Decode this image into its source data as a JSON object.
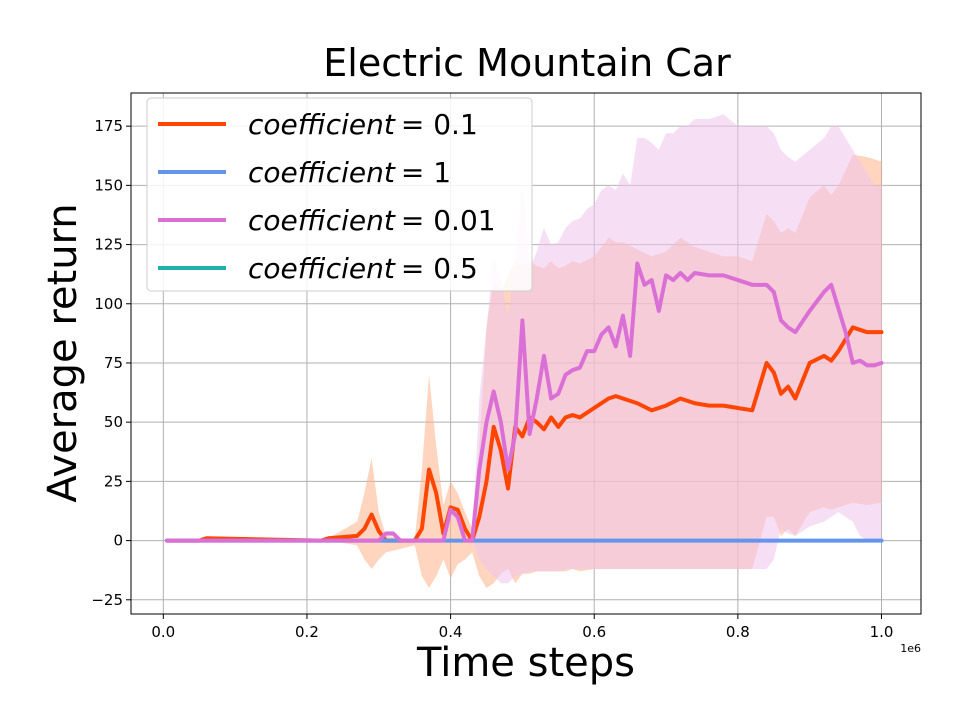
{
  "chart_data": {
    "type": "line",
    "title": "Electric Mountain Car",
    "xlabel": "Time steps",
    "ylabel": "Average return",
    "x_offset_label": "1e6",
    "xlim": [
      -0.045,
      1.055
    ],
    "ylim": [
      -31,
      189
    ],
    "x_ticks": [
      0.0,
      0.2,
      0.4,
      0.6,
      0.8,
      1.0
    ],
    "x_tick_labels": [
      "0.0",
      "0.2",
      "0.4",
      "0.6",
      "0.8",
      "1.0"
    ],
    "y_ticks": [
      -25,
      0,
      25,
      50,
      75,
      100,
      125,
      150,
      175
    ],
    "y_tick_labels": [
      "−25",
      "0",
      "25",
      "50",
      "75",
      "100",
      "125",
      "150",
      "175"
    ],
    "grid": true,
    "legend_position": "top-left",
    "series": [
      {
        "name": "coefficient = 0.1",
        "legend_italic": "coefficient",
        "legend_value": "= 0.1",
        "color": "#ff4500",
        "fill_color": "#ffb38c",
        "x": [
          0.005,
          0.05,
          0.06,
          0.22,
          0.23,
          0.27,
          0.28,
          0.29,
          0.3,
          0.31,
          0.35,
          0.36,
          0.37,
          0.38,
          0.39,
          0.4,
          0.41,
          0.42,
          0.43,
          0.44,
          0.45,
          0.46,
          0.47,
          0.48,
          0.49,
          0.5,
          0.51,
          0.52,
          0.53,
          0.54,
          0.55,
          0.56,
          0.57,
          0.58,
          0.6,
          0.62,
          0.63,
          0.64,
          0.66,
          0.68,
          0.7,
          0.72,
          0.74,
          0.76,
          0.78,
          0.8,
          0.82,
          0.84,
          0.85,
          0.86,
          0.87,
          0.88,
          0.9,
          0.92,
          0.93,
          0.94,
          0.96,
          0.98,
          1.0
        ],
        "y": [
          0,
          0,
          1,
          0,
          1,
          2,
          5,
          11,
          4,
          0,
          0,
          5,
          30,
          20,
          3,
          14,
          13,
          5,
          0,
          10,
          25,
          48,
          38,
          22,
          48,
          44,
          52,
          50,
          47,
          52,
          48,
          52,
          53,
          52,
          56,
          60,
          61,
          60,
          58,
          55,
          57,
          60,
          58,
          57,
          57,
          56,
          55,
          75,
          71,
          62,
          65,
          60,
          75,
          78,
          76,
          80,
          90,
          88,
          88
        ],
        "upper": [
          0,
          0,
          1,
          0,
          1,
          8,
          20,
          35,
          12,
          2,
          0,
          30,
          70,
          40,
          15,
          25,
          20,
          12,
          5,
          40,
          90,
          110,
          105,
          112,
          118,
          116,
          118,
          116,
          115,
          118,
          115,
          116,
          118,
          117,
          120,
          128,
          126,
          126,
          123,
          120,
          122,
          128,
          124,
          122,
          120,
          120,
          118,
          138,
          135,
          130,
          132,
          130,
          145,
          150,
          146,
          150,
          163,
          162,
          160
        ],
        "lower": [
          0,
          0,
          0,
          0,
          0,
          -2,
          -8,
          -12,
          -8,
          -5,
          -2,
          -15,
          -20,
          -15,
          -8,
          -16,
          -10,
          -8,
          -5,
          -15,
          -20,
          -18,
          -14,
          -12,
          -18,
          -14,
          -14,
          -13,
          -13,
          -13,
          -13,
          -13,
          -12,
          -13,
          -12,
          -12,
          -12,
          -12,
          -12,
          -12,
          -12,
          -12,
          -12,
          -12,
          -12,
          -12,
          -12,
          10,
          10,
          2,
          5,
          2,
          12,
          14,
          13,
          14,
          16,
          15,
          16
        ]
      },
      {
        "name": "coefficient = 1",
        "legend_italic": "coefficient",
        "legend_value": "= 1",
        "color": "#6495ed",
        "fill_color": "#6495ed",
        "x": [
          0.005,
          1.0
        ],
        "y": [
          0,
          0
        ]
      },
      {
        "name": "coefficient = 0.01",
        "legend_italic": "coefficient",
        "legend_value": "= 0.01",
        "color": "#da70d6",
        "fill_color": "#eec5ec",
        "x": [
          0.005,
          0.3,
          0.31,
          0.32,
          0.33,
          0.39,
          0.4,
          0.41,
          0.42,
          0.43,
          0.44,
          0.45,
          0.46,
          0.47,
          0.48,
          0.49,
          0.5,
          0.51,
          0.52,
          0.53,
          0.54,
          0.55,
          0.56,
          0.57,
          0.58,
          0.59,
          0.6,
          0.61,
          0.62,
          0.63,
          0.64,
          0.65,
          0.66,
          0.67,
          0.68,
          0.69,
          0.7,
          0.71,
          0.72,
          0.73,
          0.74,
          0.76,
          0.78,
          0.8,
          0.82,
          0.84,
          0.85,
          0.86,
          0.87,
          0.88,
          0.9,
          0.92,
          0.93,
          0.94,
          0.95,
          0.96,
          0.97,
          0.98,
          0.99,
          1.0
        ],
        "y": [
          0,
          0,
          3,
          3,
          0,
          0,
          13,
          10,
          0,
          0,
          30,
          50,
          63,
          50,
          30,
          45,
          93,
          45,
          60,
          78,
          60,
          62,
          70,
          72,
          73,
          80,
          80,
          87,
          90,
          82,
          95,
          78,
          117,
          108,
          110,
          97,
          112,
          110,
          113,
          110,
          113,
          112,
          112,
          110,
          108,
          108,
          105,
          93,
          90,
          88,
          97,
          105,
          108,
          98,
          88,
          75,
          76,
          74,
          74,
          75
        ],
        "upper": [
          0,
          0,
          4,
          4,
          0,
          0,
          15,
          12,
          0,
          0,
          60,
          90,
          120,
          110,
          95,
          118,
          150,
          115,
          122,
          132,
          125,
          126,
          132,
          135,
          136,
          140,
          142,
          148,
          150,
          148,
          155,
          150,
          170,
          170,
          168,
          165,
          172,
          172,
          175,
          175,
          178,
          178,
          180,
          175,
          175,
          175,
          172,
          165,
          162,
          160,
          165,
          170,
          175,
          175,
          170,
          165,
          160,
          155,
          150,
          150
        ],
        "lower": [
          0,
          0,
          2,
          2,
          0,
          0,
          10,
          8,
          0,
          0,
          -8,
          -12,
          -15,
          -18,
          -18,
          -15,
          -14,
          -13,
          -13,
          -13,
          -13,
          -13,
          -12,
          -12,
          -12,
          -12,
          -12,
          -12,
          -12,
          -12,
          -12,
          -12,
          -12,
          -12,
          -12,
          -12,
          -12,
          -12,
          -12,
          -12,
          -12,
          -12,
          -12,
          -12,
          -12,
          -12,
          -8,
          5,
          3,
          2,
          6,
          8,
          10,
          12,
          10,
          8,
          2,
          0,
          0,
          0
        ]
      },
      {
        "name": "coefficient = 0.5",
        "legend_italic": "coefficient",
        "legend_value": "= 0.5",
        "color": "#20b2aa",
        "fill_color": "#20b2aa",
        "x": [],
        "y": []
      }
    ]
  }
}
